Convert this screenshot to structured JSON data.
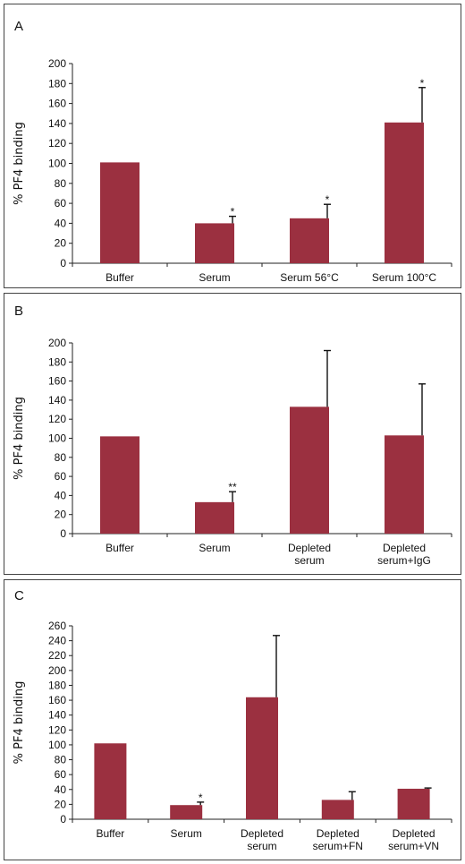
{
  "colors": {
    "bar": "#9b3040",
    "axis": "#222222",
    "text": "#111111"
  },
  "chart_data": [
    {
      "type": "bar",
      "panel_label": "A",
      "ylabel": "% PF4 binding",
      "ylim": [
        0,
        200
      ],
      "yticks": [
        0,
        20,
        40,
        60,
        80,
        100,
        120,
        140,
        160,
        180,
        200
      ],
      "categories": [
        [
          "Buffer"
        ],
        [
          "Serum"
        ],
        [
          "Serum 56°C"
        ],
        [
          "Serum 100°C"
        ]
      ],
      "values": [
        101,
        40,
        45,
        141
      ],
      "errors": [
        0,
        7,
        14,
        35
      ],
      "significance": [
        "",
        "*",
        "*",
        "*"
      ]
    },
    {
      "type": "bar",
      "panel_label": "B",
      "ylabel": "% PF4 binding",
      "ylim": [
        0,
        200
      ],
      "yticks": [
        0,
        20,
        40,
        60,
        80,
        100,
        120,
        140,
        160,
        180,
        200
      ],
      "categories": [
        [
          "Buffer"
        ],
        [
          "Serum"
        ],
        [
          "Depleted",
          "serum"
        ],
        [
          "Depleted",
          "serum+IgG"
        ]
      ],
      "values": [
        102,
        33,
        133,
        103
      ],
      "errors": [
        0,
        11,
        59,
        54
      ],
      "significance": [
        "",
        "**",
        "",
        ""
      ]
    },
    {
      "type": "bar",
      "panel_label": "C",
      "ylabel": "% PF4 binding",
      "ylim": [
        0,
        260
      ],
      "yticks": [
        0,
        20,
        40,
        60,
        80,
        100,
        120,
        140,
        160,
        180,
        200,
        220,
        240,
        260
      ],
      "categories": [
        [
          "Buffer"
        ],
        [
          "Serum"
        ],
        [
          "Depleted",
          "serum"
        ],
        [
          "Depleted",
          "serum+FN"
        ],
        [
          "Depleted",
          "serum+VN"
        ]
      ],
      "values": [
        102,
        19,
        164,
        26,
        41
      ],
      "errors": [
        0,
        4,
        83,
        11,
        1
      ],
      "significance": [
        "",
        "*",
        "",
        "",
        ""
      ]
    }
  ]
}
